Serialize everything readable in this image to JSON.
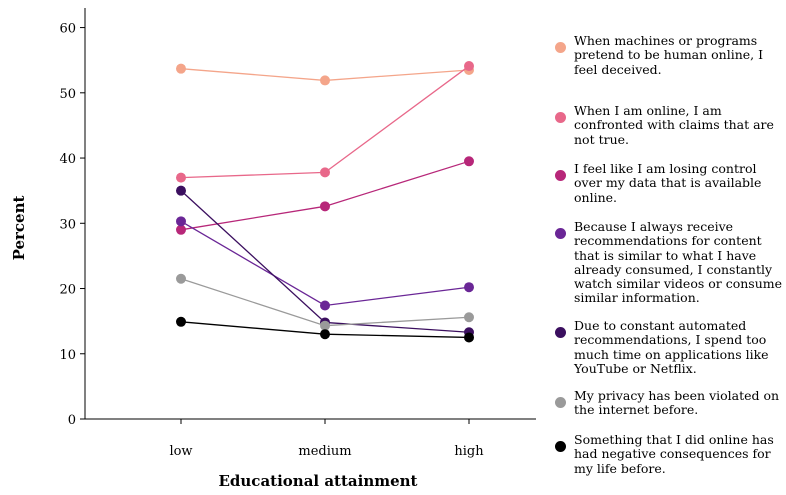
{
  "chart_data": {
    "type": "line",
    "title": "",
    "xlabel": "Educational attainment",
    "ylabel": "Percent",
    "categories": [
      "low",
      "medium",
      "high"
    ],
    "ylim": [
      0,
      63
    ],
    "yticks": [
      0,
      10,
      20,
      30,
      40,
      50,
      60
    ],
    "grid": false,
    "legend_position": "right",
    "series": [
      {
        "name": "When machines or programs pretend to be human online, I feel deceived.",
        "color": "#f4a58a",
        "values": [
          53.7,
          51.9,
          53.5
        ]
      },
      {
        "name": "When I am online, I am confronted with claims that are not true.",
        "color": "#e8688a",
        "values": [
          37.0,
          37.8,
          54.1
        ]
      },
      {
        "name": "I feel like I am losing control over my data that is available online.",
        "color": "#b72779",
        "values": [
          29.0,
          32.6,
          39.5
        ]
      },
      {
        "name": "Because I always receive recommendations for content that is similar to what I have already consumed, I constantly watch similar videos or consume similar information.",
        "color": "#6a2696",
        "values": [
          30.3,
          17.4,
          20.2
        ]
      },
      {
        "name": "Due to constant automated recommendations, I spend too much time on applications like YouTube or Netflix.",
        "color": "#3b0f5f",
        "values": [
          35.0,
          14.8,
          13.3
        ]
      },
      {
        "name": "My privacy has been violated on the internet before.",
        "color": "#9a9a9a",
        "values": [
          21.5,
          14.3,
          15.6
        ]
      },
      {
        "name": "Something that I did online has had negative consequences for my life before.",
        "color": "#000000",
        "values": [
          14.9,
          13.0,
          12.5
        ]
      }
    ]
  }
}
